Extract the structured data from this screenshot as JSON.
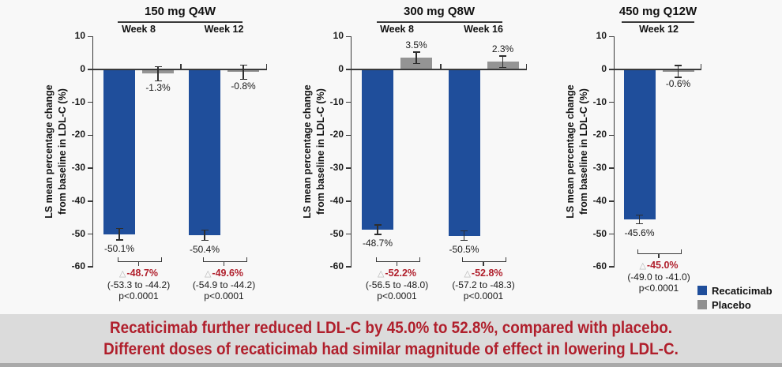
{
  "chart_data": {
    "type": "bar",
    "ylabel_lines": [
      "LS mean percentage change",
      "from baseline in LDL-C (%)"
    ],
    "y_ticks": [
      10,
      0,
      -10,
      -20,
      -30,
      -40,
      -50,
      -60
    ],
    "ylim": [
      -60,
      10
    ],
    "delta_symbol": "△",
    "series_colors": {
      "recaticimab": "#1f4e9b",
      "placebo": "#949494"
    },
    "panels": [
      {
        "title": "150 mg Q4W",
        "groups": [
          {
            "week": "Week 8",
            "recaticimab": {
              "value": -50.1,
              "err": 1.8,
              "label": "-50.1%"
            },
            "placebo": {
              "value": -1.3,
              "err": 2.2,
              "label": "-1.3%"
            },
            "difference": {
              "delta": "-48.7%",
              "ci": "(-53.3 to -44.2)",
              "p": "p<0.0001"
            }
          },
          {
            "week": "Week 12",
            "recaticimab": {
              "value": -50.4,
              "err": 1.6,
              "label": "-50.4%"
            },
            "placebo": {
              "value": -0.8,
              "err": 2.2,
              "label": "-0.8%"
            },
            "difference": {
              "delta": "-49.6%",
              "ci": "(-54.9 to -44.2)",
              "p": "p<0.0001"
            }
          }
        ]
      },
      {
        "title": "300 mg Q8W",
        "groups": [
          {
            "week": "Week 8",
            "recaticimab": {
              "value": -48.7,
              "err": 1.5,
              "label": "-48.7%"
            },
            "placebo": {
              "value": 3.5,
              "err": 1.8,
              "label": "3.5%"
            },
            "difference": {
              "delta": "-52.2%",
              "ci": "(-56.5 to -48.0)",
              "p": "p<0.0001"
            }
          },
          {
            "week": "Week 16",
            "recaticimab": {
              "value": -50.5,
              "err": 1.5,
              "label": "-50.5%"
            },
            "placebo": {
              "value": 2.3,
              "err": 1.8,
              "label": "2.3%"
            },
            "difference": {
              "delta": "-52.8%",
              "ci": "(-57.2 to -48.3)",
              "p": "p<0.0001"
            }
          }
        ]
      },
      {
        "title": "450 mg Q12W",
        "groups": [
          {
            "week": "Week 12",
            "recaticimab": {
              "value": -45.6,
              "err": 1.4,
              "label": "-45.6%"
            },
            "placebo": {
              "value": -0.6,
              "err": 1.8,
              "label": "-0.6%"
            },
            "difference": {
              "delta": "-45.0%",
              "ci": "(-49.0 to -41.0)",
              "p": "p<0.0001"
            }
          }
        ]
      }
    ]
  },
  "legend": {
    "items": [
      {
        "label": "Recaticimab",
        "color": "#1f4e9b"
      },
      {
        "label": "Placebo",
        "color": "#909090"
      }
    ]
  },
  "banner": {
    "lines": [
      "Recaticimab further reduced LDL-C by 45.0% to 52.8%, compared with placebo.",
      "Different doses of recaticimab had similar magnitude of effect in lowering LDL-C."
    ],
    "text_color": "#b01f2c",
    "bg_color": "#dbdbdb"
  }
}
